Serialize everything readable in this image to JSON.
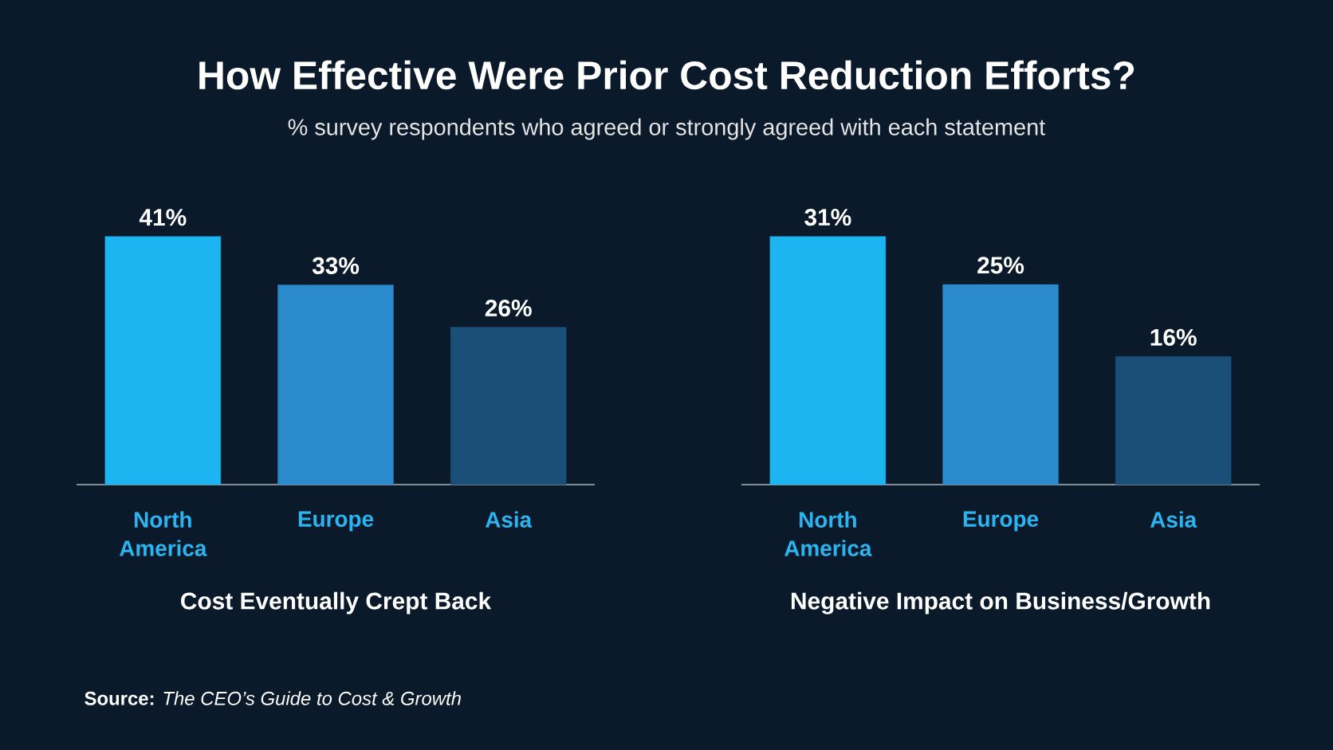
{
  "chart_data": [
    {
      "type": "bar",
      "title": "How Effective Were Prior Cost Reduction Efforts?",
      "subtitle": "% survey respondents who agreed or strongly agreed with each statement",
      "xlabel": "Cost Eventually Crept Back",
      "categories": [
        "North America",
        "Europe",
        "Asia"
      ],
      "values": [
        41,
        33,
        26
      ],
      "value_labels": [
        "41%",
        "33%",
        "26%"
      ],
      "colors": [
        "#1db4f2",
        "#2a8acb",
        "#1a4f79"
      ],
      "annotations": [
        "**Source:**  *The CEO’s Guide to Cost & Growth*"
      ]
    },
    {
      "type": "bar",
      "xlabel": "Negative Impact on Business/Growth",
      "categories": [
        "North America",
        "Europe",
        "Asia"
      ],
      "values": [
        31,
        25,
        16
      ],
      "value_labels": [
        "31%",
        "25%",
        "16%"
      ],
      "colors": [
        "#1db4f2",
        "#2a8acb",
        "#1a4f79"
      ]
    }
  ]
}
